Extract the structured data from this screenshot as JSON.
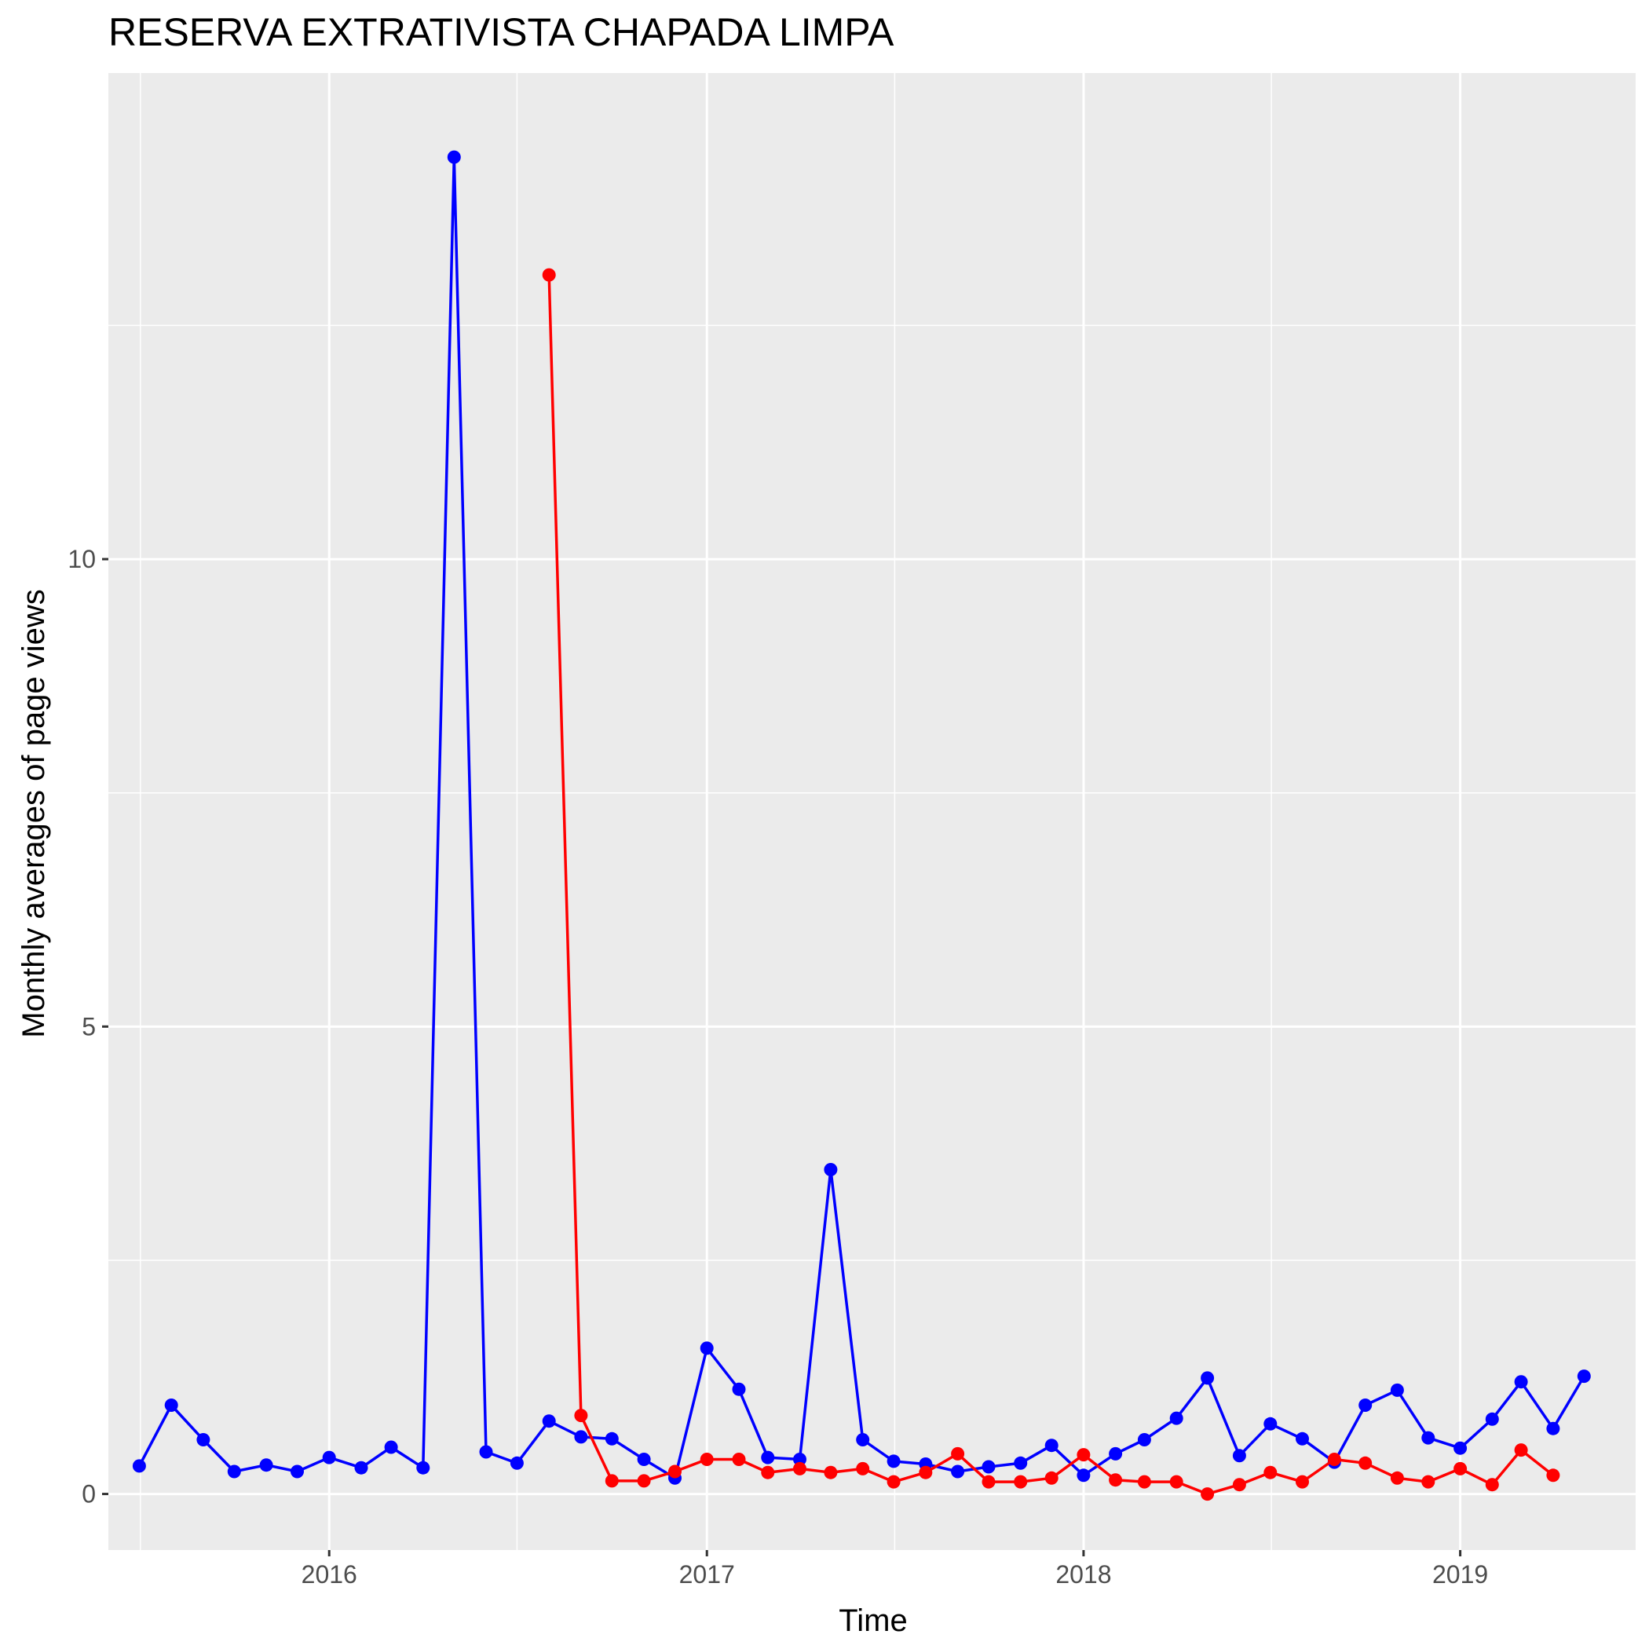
{
  "chart_data": {
    "type": "line",
    "title": "RESERVA EXTRATIVISTA CHAPADA LIMPA",
    "xlabel": "Time",
    "ylabel": "Monthly averages of page views",
    "x_ticks": [
      "2016",
      "2017",
      "2018",
      "2019"
    ],
    "y_ticks": [
      "0",
      "5",
      "10"
    ],
    "xlim": [
      "2015-06-01",
      "2019-06-20"
    ],
    "ylim": [
      -0.6,
      15.2
    ],
    "grid": true,
    "legend": "none",
    "colors": {
      "panel": "#EBEBEB",
      "grid": "#FFFFFF",
      "series_blue": "#0000FF",
      "series_red": "#FF0000"
    },
    "series": [
      {
        "color": "#0000FF",
        "points": [
          [
            "2015-07-01",
            0.3
          ],
          [
            "2015-08-01",
            0.95
          ],
          [
            "2015-09-01",
            0.58
          ],
          [
            "2015-10-01",
            0.24
          ],
          [
            "2015-11-01",
            0.31
          ],
          [
            "2015-12-01",
            0.24
          ],
          [
            "2016-01-01",
            0.39
          ],
          [
            "2016-02-01",
            0.28
          ],
          [
            "2016-03-01",
            0.5
          ],
          [
            "2016-04-01",
            0.28
          ],
          [
            "2016-05-01",
            14.3
          ],
          [
            "2016-06-01",
            0.45
          ],
          [
            "2016-07-01",
            0.33
          ],
          [
            "2016-08-01",
            0.78
          ],
          [
            "2016-09-01",
            0.61
          ],
          [
            "2016-10-01",
            0.59
          ],
          [
            "2016-11-01",
            0.37
          ],
          [
            "2016-12-01",
            0.17
          ],
          [
            "2017-01-01",
            1.56
          ],
          [
            "2017-02-01",
            1.12
          ],
          [
            "2017-03-01",
            0.39
          ],
          [
            "2017-04-01",
            0.37
          ],
          [
            "2017-05-01",
            3.47
          ],
          [
            "2017-06-01",
            0.58
          ],
          [
            "2017-07-01",
            0.35
          ],
          [
            "2017-08-01",
            0.32
          ],
          [
            "2017-09-01",
            0.24
          ],
          [
            "2017-10-01",
            0.29
          ],
          [
            "2017-11-01",
            0.33
          ],
          [
            "2017-12-01",
            0.52
          ],
          [
            "2018-01-01",
            0.2
          ],
          [
            "2018-02-01",
            0.43
          ],
          [
            "2018-03-01",
            0.58
          ],
          [
            "2018-04-01",
            0.81
          ],
          [
            "2018-05-01",
            1.24
          ],
          [
            "2018-06-01",
            0.41
          ],
          [
            "2018-07-01",
            0.75
          ],
          [
            "2018-08-01",
            0.59
          ],
          [
            "2018-09-01",
            0.34
          ],
          [
            "2018-10-01",
            0.95
          ],
          [
            "2018-11-01",
            1.11
          ],
          [
            "2018-12-01",
            0.6
          ],
          [
            "2019-01-01",
            0.49
          ],
          [
            "2019-02-01",
            0.8
          ],
          [
            "2019-03-01",
            1.2
          ],
          [
            "2019-04-01",
            0.7
          ],
          [
            "2019-05-01",
            1.26
          ]
        ]
      },
      {
        "color": "#FF0000",
        "points": [
          [
            "2016-08-01",
            13.04
          ],
          [
            "2016-09-01",
            0.84
          ],
          [
            "2016-10-01",
            0.14
          ],
          [
            "2016-11-01",
            0.14
          ],
          [
            "2016-12-01",
            0.24
          ],
          [
            "2017-01-01",
            0.37
          ],
          [
            "2017-02-01",
            0.37
          ],
          [
            "2017-03-01",
            0.23
          ],
          [
            "2017-04-01",
            0.27
          ],
          [
            "2017-05-01",
            0.23
          ],
          [
            "2017-06-01",
            0.27
          ],
          [
            "2017-07-01",
            0.13
          ],
          [
            "2017-08-01",
            0.23
          ],
          [
            "2017-09-01",
            0.43
          ],
          [
            "2017-10-01",
            0.13
          ],
          [
            "2017-11-01",
            0.13
          ],
          [
            "2017-12-01",
            0.17
          ],
          [
            "2018-01-01",
            0.42
          ],
          [
            "2018-02-01",
            0.15
          ],
          [
            "2018-03-01",
            0.13
          ],
          [
            "2018-04-01",
            0.13
          ],
          [
            "2018-05-01",
            0.0
          ],
          [
            "2018-06-01",
            0.1
          ],
          [
            "2018-07-01",
            0.23
          ],
          [
            "2018-08-01",
            0.13
          ],
          [
            "2018-09-01",
            0.37
          ],
          [
            "2018-10-01",
            0.33
          ],
          [
            "2018-11-01",
            0.17
          ],
          [
            "2018-12-01",
            0.13
          ],
          [
            "2019-01-01",
            0.27
          ],
          [
            "2019-02-01",
            0.1
          ],
          [
            "2019-03-01",
            0.47
          ],
          [
            "2019-04-01",
            0.2
          ]
        ]
      }
    ]
  }
}
